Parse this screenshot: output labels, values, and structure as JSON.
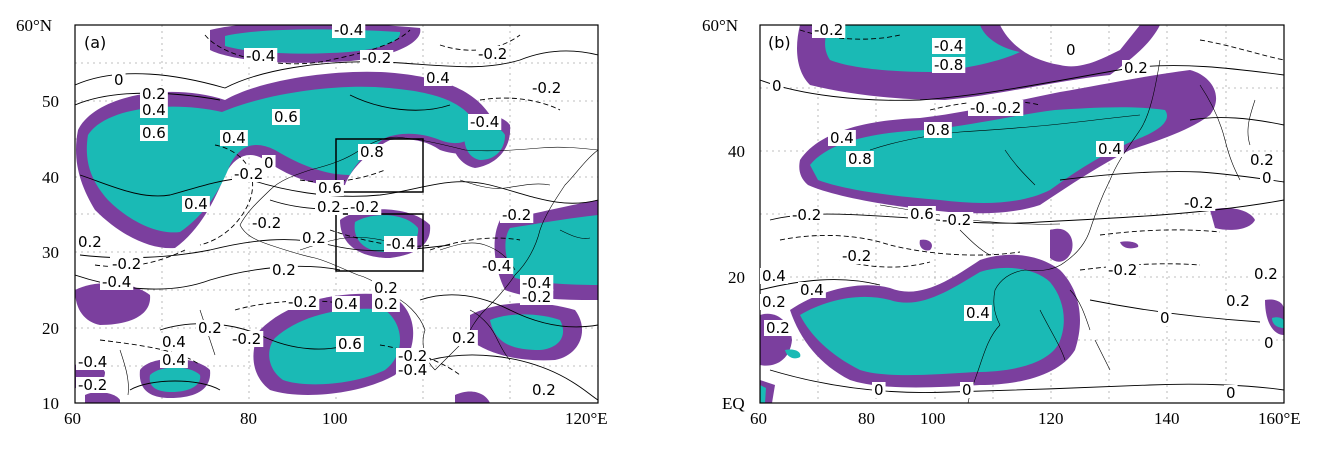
{
  "colors": {
    "teal_fill": "#1abab5",
    "purple_fill": "#7b3f9e",
    "contour": "#000000",
    "gridline": "#aaaaaa"
  },
  "panels": [
    {
      "id": "a",
      "label": "(a)",
      "x_ticks": [
        "60",
        "80",
        "100",
        "120°E"
      ],
      "y_ticks": [
        "60°N",
        "50",
        "40",
        "30",
        "20",
        "10"
      ],
      "contour_labels": [
        "-0.4",
        "-0.4",
        "-0.2",
        "-0.2",
        "0.4",
        "0",
        "0.2",
        "0.4",
        "0.6",
        "0.6",
        "0.4",
        "-0.2",
        "-0.4",
        "0.8",
        "0",
        "-0.2",
        "0.6",
        "0.4",
        "0.2",
        "-0.2",
        "-0.2",
        "0.2",
        "-0.4",
        "-0.2",
        "-0.4",
        "0.2",
        "-0.2",
        "0.2",
        "0.4",
        "-0.4",
        "-0.2",
        "-0.2",
        "0.2",
        "0.4",
        "-0.2",
        "0.6",
        "-0.2",
        "-0.4",
        "0.4",
        "-0.4",
        "0.2",
        "-0.2",
        "0.2",
        "-0.4",
        "0.2",
        "0.2"
      ]
    },
    {
      "id": "b",
      "label": "(b)",
      "x_ticks": [
        "60",
        "80",
        "100",
        "120",
        "140",
        "160°E"
      ],
      "y_ticks": [
        "60°N",
        "40",
        "20",
        "EQ"
      ],
      "contour_labels": [
        "-0.2",
        "-0.4",
        "-0.8",
        "0",
        "0.2",
        "0",
        "-0.2",
        "0.4",
        "0.8",
        "0.8",
        "0.4",
        "0.2",
        "0",
        "-0.2",
        "-0.2",
        "0.6",
        "-0.2",
        "-0.2",
        "-0.2",
        "-0.2",
        "0.4",
        "0.4",
        "0.2",
        "0.4",
        "0.2",
        "0.2",
        "0",
        "0.2",
        "0",
        "0",
        "0",
        "0"
      ]
    }
  ]
}
